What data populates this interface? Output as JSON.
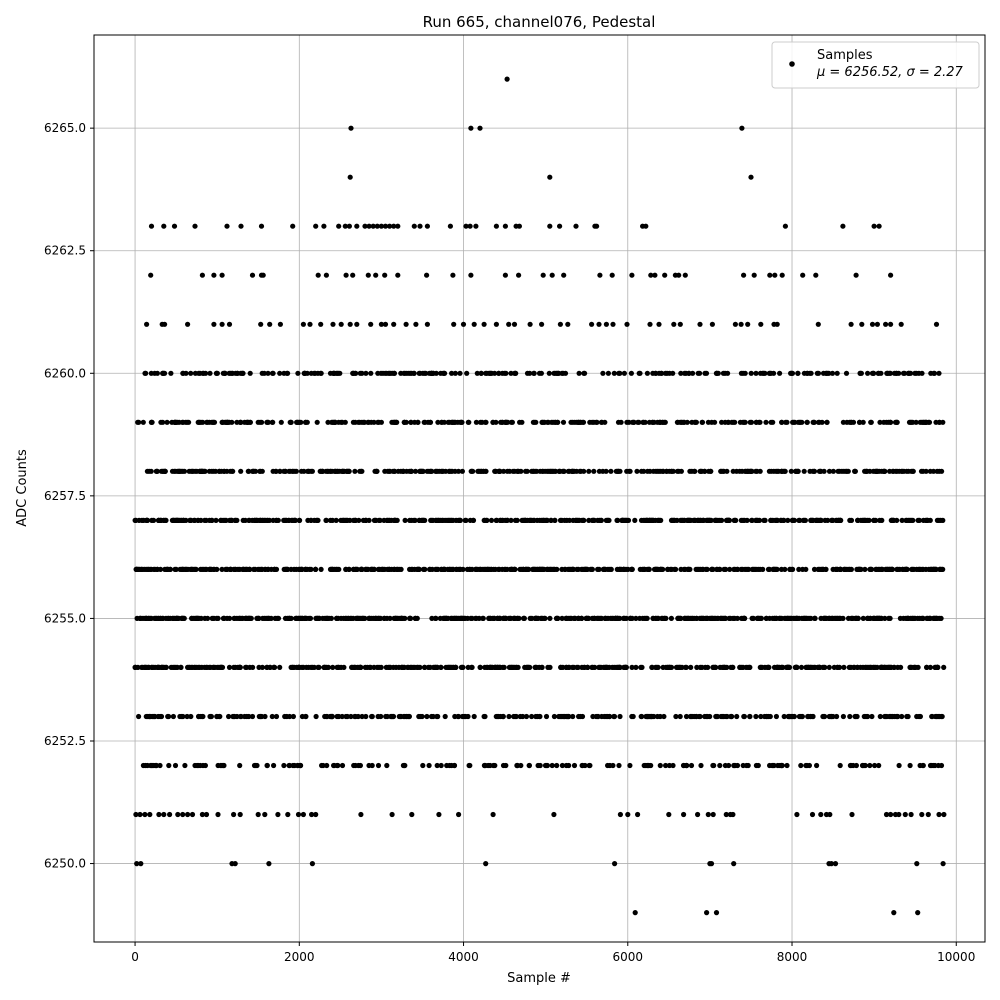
{
  "chart_data": {
    "type": "scatter",
    "title": "Run 665, channel076, Pedestal",
    "xlabel": "Sample #",
    "ylabel": "ADC Counts",
    "xlim": [
      -500,
      10350
    ],
    "ylim": [
      6248.4,
      6266.9
    ],
    "x_ticks": [
      0,
      2000,
      4000,
      6000,
      8000,
      10000
    ],
    "y_ticks": [
      6250.0,
      6252.5,
      6255.0,
      6257.5,
      6260.0,
      6262.5,
      6265.0
    ],
    "x_tick_labels": [
      "0",
      "2000",
      "4000",
      "6000",
      "8000",
      "10000"
    ],
    "y_tick_labels": [
      "6250.0",
      "6252.5",
      "6255.0",
      "6257.5",
      "6260.0",
      "6262.5",
      "6265.0"
    ],
    "grid": true,
    "legend": {
      "placement": "top-right",
      "label": "Samples",
      "stats": "μ = 6256.52, σ = 2.27"
    },
    "marker_color": "#000000",
    "series": [
      {
        "name": "Samples",
        "points": [
          [
            2630,
            6265
          ],
          [
            4090,
            6265
          ],
          [
            4200,
            6265
          ],
          [
            7390,
            6265
          ],
          [
            4530,
            6266
          ],
          [
            2620,
            6264
          ],
          [
            5050,
            6264
          ],
          [
            7500,
            6264
          ],
          [
            200,
            6263
          ],
          [
            350,
            6263
          ],
          [
            480,
            6263
          ],
          [
            730,
            6263
          ],
          [
            1120,
            6263
          ],
          [
            1290,
            6263
          ],
          [
            1540,
            6263
          ],
          [
            1920,
            6263
          ],
          [
            2200,
            6263
          ],
          [
            2300,
            6263
          ],
          [
            2480,
            6263
          ],
          [
            2560,
            6263
          ],
          [
            2610,
            6263
          ],
          [
            2700,
            6263
          ],
          [
            2800,
            6263
          ],
          [
            2850,
            6263
          ],
          [
            2900,
            6263
          ],
          [
            2950,
            6263
          ],
          [
            3000,
            6263
          ],
          [
            3050,
            6263
          ],
          [
            3100,
            6263
          ],
          [
            3150,
            6263
          ],
          [
            3200,
            6263
          ],
          [
            3400,
            6263
          ],
          [
            3470,
            6263
          ],
          [
            3560,
            6263
          ],
          [
            3840,
            6263
          ],
          [
            4030,
            6263
          ],
          [
            4080,
            6263
          ],
          [
            4150,
            6263
          ],
          [
            4400,
            6263
          ],
          [
            4510,
            6263
          ],
          [
            4640,
            6263
          ],
          [
            4680,
            6263
          ],
          [
            5050,
            6263
          ],
          [
            5170,
            6263
          ],
          [
            5370,
            6263
          ],
          [
            5600,
            6263
          ],
          [
            5620,
            6263
          ],
          [
            6180,
            6263
          ],
          [
            6220,
            6263
          ],
          [
            7920,
            6263
          ],
          [
            8620,
            6263
          ],
          [
            9000,
            6263
          ],
          [
            9060,
            6263
          ],
          [
            190,
            6262
          ],
          [
            820,
            6262
          ],
          [
            960,
            6262
          ],
          [
            1060,
            6262
          ],
          [
            1430,
            6262
          ],
          [
            1540,
            6262
          ],
          [
            1560,
            6262
          ],
          [
            2230,
            6262
          ],
          [
            2330,
            6262
          ],
          [
            2570,
            6262
          ],
          [
            2650,
            6262
          ],
          [
            2840,
            6262
          ],
          [
            2930,
            6262
          ],
          [
            3040,
            6262
          ],
          [
            3200,
            6262
          ],
          [
            3550,
            6262
          ],
          [
            3870,
            6262
          ],
          [
            4090,
            6262
          ],
          [
            4510,
            6262
          ],
          [
            4670,
            6262
          ],
          [
            4970,
            6262
          ],
          [
            5080,
            6262
          ],
          [
            5220,
            6262
          ],
          [
            5660,
            6262
          ],
          [
            5810,
            6262
          ],
          [
            6050,
            6262
          ],
          [
            6280,
            6262
          ],
          [
            6330,
            6262
          ],
          [
            6450,
            6262
          ],
          [
            6580,
            6262
          ],
          [
            6620,
            6262
          ],
          [
            6700,
            6262
          ],
          [
            7410,
            6262
          ],
          [
            7540,
            6262
          ],
          [
            7730,
            6262
          ],
          [
            7790,
            6262
          ],
          [
            7880,
            6262
          ],
          [
            8130,
            6262
          ],
          [
            8290,
            6262
          ],
          [
            8780,
            6262
          ],
          [
            9200,
            6262
          ],
          [
            140,
            6261
          ],
          [
            330,
            6261
          ],
          [
            360,
            6261
          ],
          [
            640,
            6261
          ],
          [
            960,
            6261
          ],
          [
            1060,
            6261
          ],
          [
            1150,
            6261
          ],
          [
            1530,
            6261
          ],
          [
            1640,
            6261
          ],
          [
            1770,
            6261
          ],
          [
            2050,
            6261
          ],
          [
            2130,
            6261
          ],
          [
            2260,
            6261
          ],
          [
            2410,
            6261
          ],
          [
            2510,
            6261
          ],
          [
            2620,
            6261
          ],
          [
            2700,
            6261
          ],
          [
            2870,
            6261
          ],
          [
            3000,
            6261
          ],
          [
            3050,
            6261
          ],
          [
            3150,
            6261
          ],
          [
            3300,
            6261
          ],
          [
            3420,
            6261
          ],
          [
            3560,
            6261
          ],
          [
            3880,
            6261
          ],
          [
            4000,
            6261
          ],
          [
            4130,
            6261
          ],
          [
            4250,
            6261
          ],
          [
            4400,
            6261
          ],
          [
            4550,
            6261
          ],
          [
            4620,
            6261
          ],
          [
            4810,
            6261
          ],
          [
            4950,
            6261
          ],
          [
            5180,
            6261
          ],
          [
            5270,
            6261
          ],
          [
            5560,
            6261
          ],
          [
            5650,
            6261
          ],
          [
            5740,
            6261
          ],
          [
            5820,
            6261
          ],
          [
            5990,
            6261
          ],
          [
            6270,
            6261
          ],
          [
            6380,
            6261
          ],
          [
            6560,
            6261
          ],
          [
            6640,
            6261
          ],
          [
            6880,
            6261
          ],
          [
            7030,
            6261
          ],
          [
            7310,
            6261
          ],
          [
            7380,
            6261
          ],
          [
            7460,
            6261
          ],
          [
            7620,
            6261
          ],
          [
            7780,
            6261
          ],
          [
            7820,
            6261
          ],
          [
            8320,
            6261
          ],
          [
            8720,
            6261
          ],
          [
            8850,
            6261
          ],
          [
            8980,
            6261
          ],
          [
            9040,
            6261
          ],
          [
            9140,
            6261
          ],
          [
            9200,
            6261
          ],
          [
            9330,
            6261
          ],
          [
            9760,
            6261
          ],
          [
            9790,
            6260
          ],
          [
            9430,
            6260
          ],
          [
            9690,
            6260
          ],
          [
            9530,
            6249
          ],
          [
            9240,
            6249
          ],
          [
            7080,
            6249
          ],
          [
            6960,
            6249
          ],
          [
            6090,
            6249
          ],
          [
            20,
            6250
          ],
          [
            70,
            6250
          ],
          [
            1180,
            6250
          ],
          [
            1220,
            6250
          ],
          [
            1630,
            6250
          ],
          [
            2160,
            6250
          ],
          [
            4270,
            6250
          ],
          [
            5840,
            6250
          ],
          [
            7000,
            6250
          ],
          [
            7020,
            6250
          ],
          [
            7290,
            6250
          ],
          [
            8450,
            6250
          ],
          [
            8480,
            6250
          ],
          [
            8530,
            6250
          ],
          [
            9520,
            6250
          ],
          [
            9840,
            6250
          ],
          [
            10,
            6251
          ],
          [
            60,
            6251
          ],
          [
            120,
            6251
          ],
          [
            180,
            6251
          ],
          [
            290,
            6251
          ],
          [
            350,
            6251
          ],
          [
            420,
            6251
          ],
          [
            520,
            6251
          ],
          [
            580,
            6251
          ],
          [
            640,
            6251
          ],
          [
            700,
            6251
          ],
          [
            820,
            6251
          ],
          [
            870,
            6251
          ],
          [
            1010,
            6251
          ],
          [
            1200,
            6251
          ],
          [
            1280,
            6251
          ],
          [
            1500,
            6251
          ],
          [
            1580,
            6251
          ],
          [
            1740,
            6251
          ],
          [
            1860,
            6251
          ],
          [
            1990,
            6251
          ],
          [
            2050,
            6251
          ],
          [
            2150,
            6251
          ],
          [
            2200,
            6251
          ],
          [
            2750,
            6251
          ],
          [
            3130,
            6251
          ],
          [
            3370,
            6251
          ],
          [
            3700,
            6251
          ],
          [
            3940,
            6251
          ],
          [
            4360,
            6251
          ],
          [
            5100,
            6251
          ],
          [
            5910,
            6251
          ],
          [
            6000,
            6251
          ],
          [
            6120,
            6251
          ],
          [
            6500,
            6251
          ],
          [
            6680,
            6251
          ],
          [
            6850,
            6251
          ],
          [
            6980,
            6251
          ],
          [
            7040,
            6251
          ],
          [
            7200,
            6251
          ],
          [
            7250,
            6251
          ],
          [
            7280,
            6251
          ],
          [
            8060,
            6251
          ],
          [
            8250,
            6251
          ],
          [
            8350,
            6251
          ],
          [
            8420,
            6251
          ],
          [
            8460,
            6251
          ],
          [
            8730,
            6251
          ],
          [
            9150,
            6251
          ],
          [
            9200,
            6251
          ],
          [
            9260,
            6251
          ],
          [
            9300,
            6251
          ],
          [
            9380,
            6251
          ],
          [
            9450,
            6251
          ],
          [
            9580,
            6251
          ],
          [
            9660,
            6251
          ],
          [
            9790,
            6251
          ],
          [
            9850,
            6251
          ],
          [
            2720,
            6252
          ],
          [
            4650,
            6252
          ],
          [
            5010,
            6252
          ],
          [
            5080,
            6252
          ],
          [
            5450,
            6252
          ],
          [
            5530,
            6252
          ],
          [
            7590,
            6252
          ],
          [
            7770,
            6252
          ],
          [
            7880,
            6252
          ],
          [
            2460,
            6253
          ],
          [
            2880,
            6253
          ],
          [
            2960,
            6253
          ],
          [
            3300,
            6253
          ],
          [
            3610,
            6253
          ],
          [
            3940,
            6253
          ],
          [
            4130,
            6253
          ],
          [
            4720,
            6253
          ],
          [
            4930,
            6253
          ],
          [
            5010,
            6253
          ],
          [
            5260,
            6253
          ],
          [
            8880,
            6253
          ],
          [
            9140,
            6253
          ],
          [
            2910,
            6254
          ],
          [
            3060,
            6254
          ],
          [
            3280,
            6254
          ],
          [
            3870,
            6254
          ],
          [
            4440,
            6254
          ],
          [
            5250,
            6254
          ],
          [
            5510,
            6254
          ],
          [
            8760,
            6254
          ]
        ],
        "dense_bands": [
          {
            "y": 6260,
            "x_range": [
              120,
              9820
            ],
            "count": 260
          },
          {
            "y": 6259,
            "x_range": [
              30,
              9850
            ],
            "count": 320
          },
          {
            "y": 6258,
            "x_range": [
              100,
              9850
            ],
            "count": 380
          },
          {
            "y": 6257,
            "x_range": [
              0,
              9850
            ],
            "count": 460
          },
          {
            "y": 6256,
            "x_range": [
              0,
              9850
            ],
            "count": 520
          },
          {
            "y": 6255,
            "x_range": [
              0,
              9850
            ],
            "count": 540
          },
          {
            "y": 6254,
            "x_range": [
              0,
              9850
            ],
            "count": 440
          },
          {
            "y": 6253,
            "x_range": [
              0,
              9850
            ],
            "count": 280
          },
          {
            "y": 6252,
            "x_range": [
              0,
              9850
            ],
            "count": 170
          }
        ]
      }
    ]
  }
}
